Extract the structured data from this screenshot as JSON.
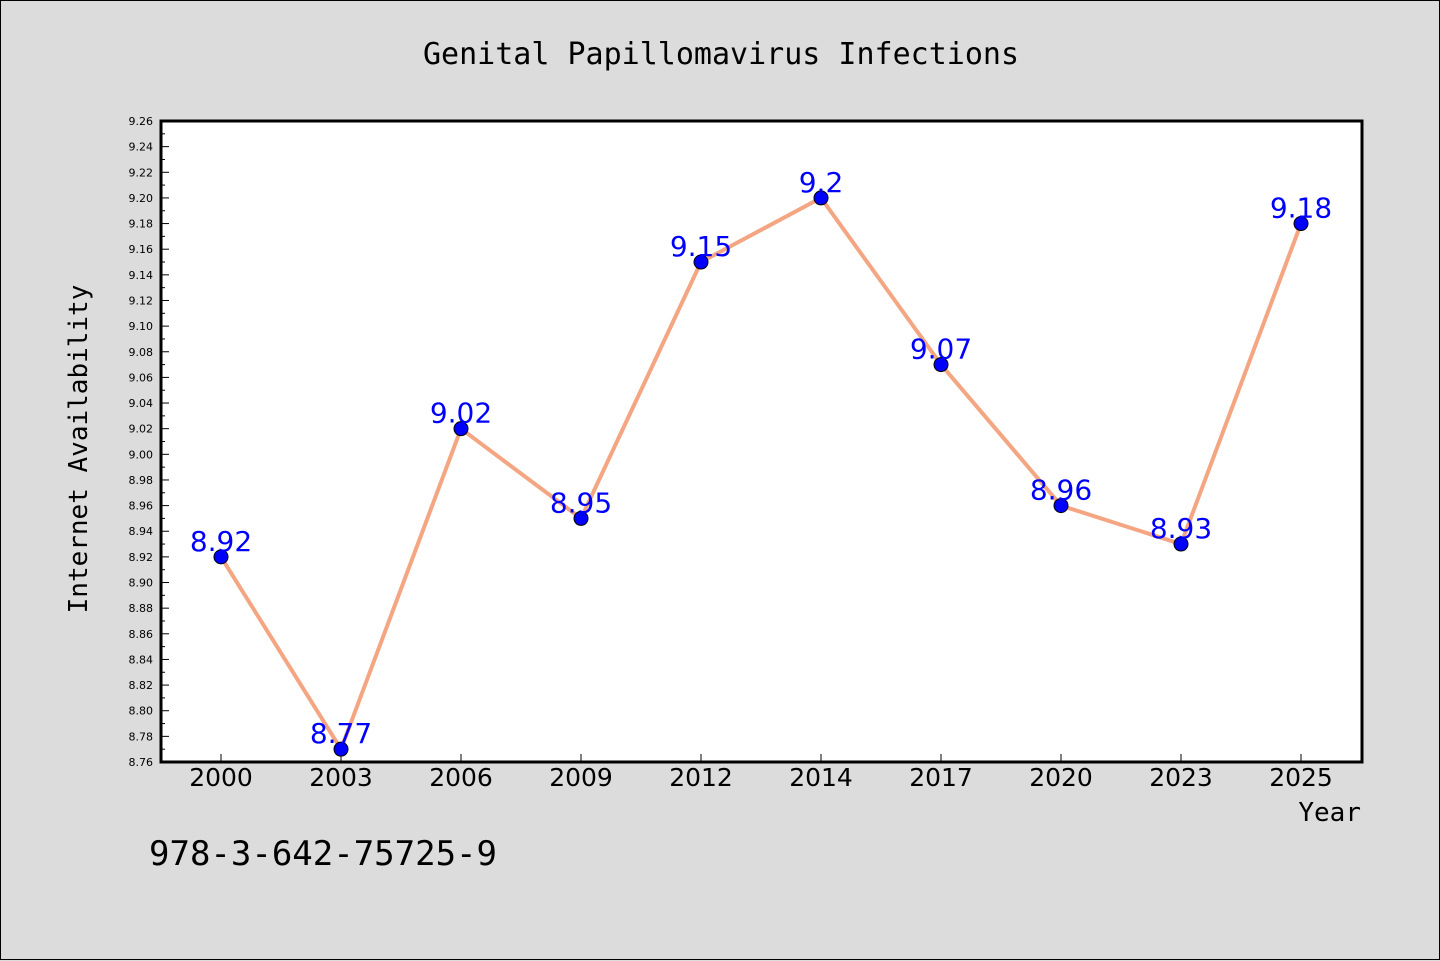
{
  "chart_data": {
    "type": "line",
    "title": "Genital Papillomavirus Infections",
    "xlabel": "Year",
    "ylabel": "Internet Availability",
    "categories": [
      "2000",
      "2003",
      "2006",
      "2009",
      "2012",
      "2014",
      "2017",
      "2020",
      "2023",
      "2025"
    ],
    "series": [
      {
        "values": [
          8.92,
          8.77,
          9.02,
          8.95,
          9.15,
          9.2,
          9.07,
          8.96,
          8.93,
          9.18
        ],
        "line_color": "#f4a582",
        "marker_color": "#0000ff"
      }
    ],
    "data_labels": [
      "8.92",
      "8.77",
      "9.02",
      "8.95",
      "9.15",
      "9.2",
      "9.07",
      "8.96",
      "8.93",
      "9.18"
    ],
    "ylim": [
      8.76,
      9.26
    ],
    "yticks": [
      "8.76",
      "8.78",
      "8.80",
      "8.82",
      "8.84",
      "8.86",
      "8.88",
      "8.90",
      "8.92",
      "8.94",
      "8.96",
      "8.98",
      "9.00",
      "9.02",
      "9.04",
      "9.06",
      "9.08",
      "9.10",
      "9.12",
      "9.14",
      "9.16",
      "9.18",
      "9.20",
      "9.22",
      "9.24",
      "9.26"
    ],
    "grid": false,
    "legend": "none"
  },
  "footer_text": "978-3-642-75725-9",
  "colors": {
    "background": "#dcdcdc",
    "plot_background": "#ffffff",
    "line": "#f4a582",
    "marker": "#0000ff",
    "data_label": "#0000ff"
  }
}
